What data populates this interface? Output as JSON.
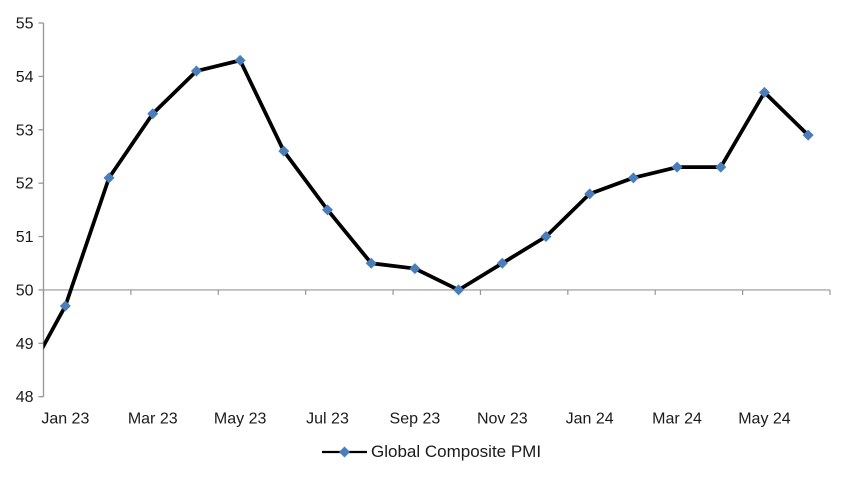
{
  "chart_data": {
    "type": "line",
    "title": "",
    "legend": "Global Composite PMI",
    "legend_position": "bottom-center",
    "grid": "none",
    "x_axis_cross_value": 50,
    "ylim": [
      48,
      55
    ],
    "y_ticks": [
      48,
      49,
      50,
      51,
      52,
      53,
      54,
      55
    ],
    "x_tick_labels": [
      "Jan 23",
      "Mar 23",
      "May 23",
      "Jul 23",
      "Sep 23",
      "Nov 23",
      "Jan 24",
      "Mar 24",
      "May 24"
    ],
    "categories": [
      "Dec 22",
      "Jan 23",
      "Feb 23",
      "Mar 23",
      "Apr 23",
      "May 23",
      "Jun 23",
      "Jul 23",
      "Aug 23",
      "Sep 23",
      "Oct 23",
      "Nov 23",
      "Dec 23",
      "Jan 24",
      "Feb 24",
      "Mar 24",
      "Apr 24",
      "May 24",
      "Jun 24"
    ],
    "series": [
      {
        "name": "Global Composite PMI",
        "values": [
          48.2,
          49.7,
          52.1,
          53.3,
          54.1,
          54.3,
          52.6,
          51.5,
          50.5,
          50.4,
          50.0,
          50.5,
          51.0,
          51.8,
          52.1,
          52.3,
          52.3,
          53.7,
          52.9
        ]
      }
    ],
    "first_category_clipped_left_of_axis": true,
    "marker_shape": "diamond",
    "marker_color": "#4A7EBB",
    "line_color": "#000000",
    "axis_color": "#969696",
    "label_color": "#1A1A1A",
    "background_color": "#FFFFFF"
  }
}
